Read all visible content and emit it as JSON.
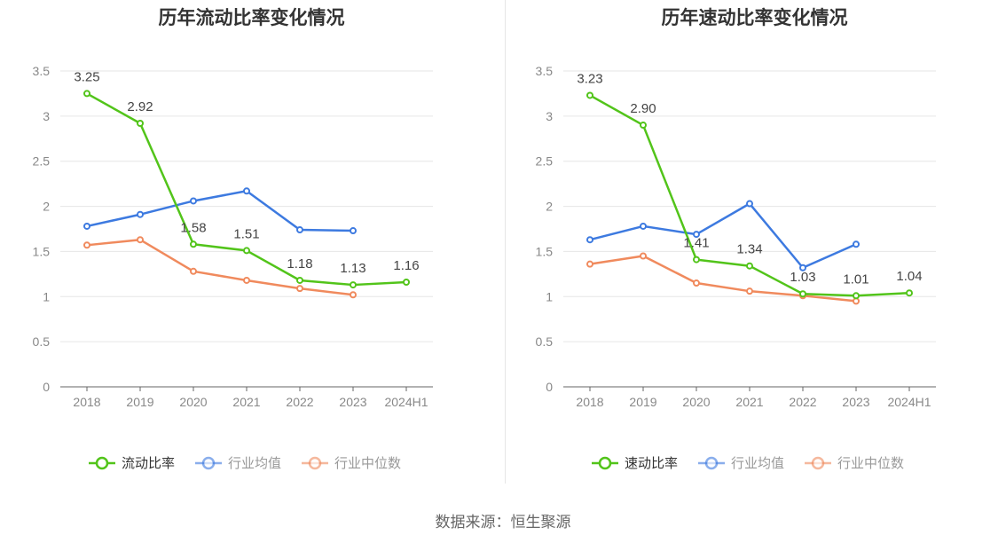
{
  "source": "数据来源：恒生聚源",
  "chart_data": [
    {
      "type": "line",
      "title": "历年流动比率变化情况",
      "categories": [
        "2018",
        "2019",
        "2020",
        "2021",
        "2022",
        "2023",
        "2024H1"
      ],
      "ylim": [
        0,
        3.5
      ],
      "yticks": [
        "0",
        "0.5",
        "1",
        "1.5",
        "2",
        "2.5",
        "3",
        "3.5"
      ],
      "grid": true,
      "legend_position": "bottom",
      "series": [
        {
          "name": "流动比率",
          "color": "#52c41a",
          "values": [
            3.25,
            2.92,
            1.58,
            1.51,
            1.18,
            1.13,
            1.16
          ],
          "labels": [
            "3.25",
            "2.92",
            "1.58",
            "1.51",
            "1.18",
            "1.13",
            "1.16"
          ]
        },
        {
          "name": "行业均值",
          "color": "#3d7ae0",
          "values": [
            1.78,
            1.91,
            2.06,
            2.17,
            1.74,
            1.73,
            null
          ]
        },
        {
          "name": "行业中位数",
          "color": "#f08a5d",
          "values": [
            1.57,
            1.63,
            1.28,
            1.18,
            1.09,
            1.02,
            null
          ]
        }
      ]
    },
    {
      "type": "line",
      "title": "历年速动比率变化情况",
      "categories": [
        "2018",
        "2019",
        "2020",
        "2021",
        "2022",
        "2023",
        "2024H1"
      ],
      "ylim": [
        0,
        3.5
      ],
      "yticks": [
        "0",
        "0.5",
        "1",
        "1.5",
        "2",
        "2.5",
        "3",
        "3.5"
      ],
      "grid": true,
      "legend_position": "bottom",
      "series": [
        {
          "name": "速动比率",
          "color": "#52c41a",
          "values": [
            3.23,
            2.9,
            1.41,
            1.34,
            1.03,
            1.01,
            1.04
          ],
          "labels": [
            "3.23",
            "2.90",
            "1.41",
            "1.34",
            "1.03",
            "1.01",
            "1.04"
          ]
        },
        {
          "name": "行业均值",
          "color": "#3d7ae0",
          "values": [
            1.63,
            1.78,
            1.69,
            2.03,
            1.32,
            1.58,
            null
          ]
        },
        {
          "name": "行业中位数",
          "color": "#f08a5d",
          "values": [
            1.36,
            1.45,
            1.15,
            1.06,
            1.01,
            0.95,
            null
          ]
        }
      ]
    }
  ]
}
